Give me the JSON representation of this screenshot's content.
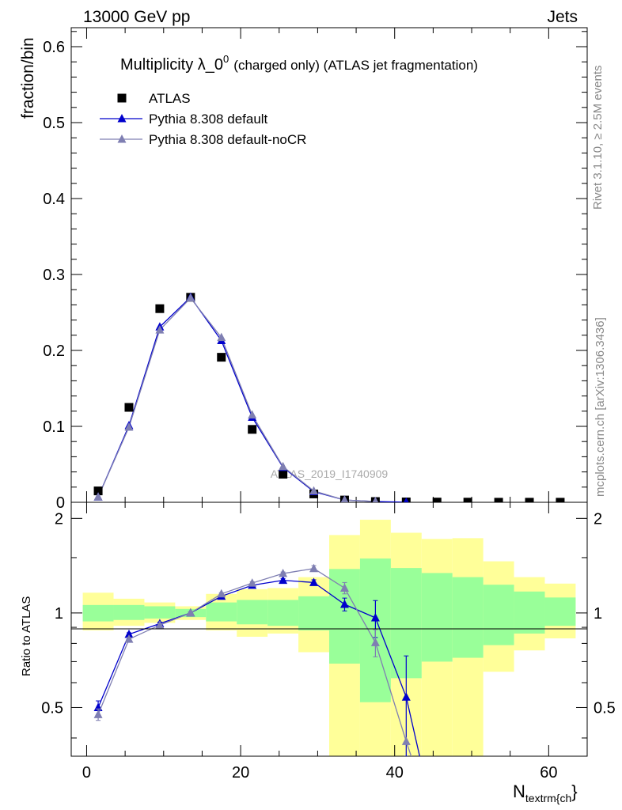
{
  "header": {
    "left": "13000 GeV pp",
    "right": "Jets"
  },
  "side_text": {
    "upper": "Rivet 3.1.10, ≥ 2.5M events",
    "lower": "mcplots.cern.ch [arXiv:1306.3436]"
  },
  "chart_data": {
    "type": "scatter",
    "title": "Multiplicity λ_0",
    "title_sup": "0",
    "title_suffix": "(charged only) (ATLAS jet fragmentation)",
    "watermark": "ATLAS_2019_I1740909",
    "xlabel": "N",
    "xlabel_sub": "textrm{ch",
    "xlabel_tail": "}",
    "ylabel": "fraction/bin",
    "ratio_ylabel": "Ratio to ATLAS",
    "xlim": [
      -2,
      65
    ],
    "ylim": [
      0,
      0.625
    ],
    "ratio_ylim": [
      0.35,
      2.25
    ],
    "x_ticks": [
      "0",
      "20",
      "40",
      "60"
    ],
    "y_ticks": [
      "0",
      "0.1",
      "0.2",
      "0.3",
      "0.4",
      "0.5",
      "0.6"
    ],
    "ratio_ticks": [
      "0.5",
      "1",
      "2"
    ],
    "x": [
      1.5,
      5.5,
      9.5,
      13.5,
      17.5,
      21.5,
      25.5,
      29.5,
      33.5,
      37.5,
      41.5,
      45.5,
      49.5,
      53.5,
      57.5,
      61.5
    ],
    "bin_edges": [
      -0.5,
      3.5,
      7.5,
      11.5,
      15.5,
      19.5,
      23.5,
      27.5,
      31.5,
      35.5,
      39.5,
      43.5,
      47.5,
      51.5,
      55.5,
      59.5,
      63.5
    ],
    "legend": {
      "placement": "top-left",
      "entries": [
        "ATLAS",
        "Pythia 8.308 default",
        "Pythia 8.308 default-noCR"
      ]
    },
    "series": [
      {
        "name": "ATLAS",
        "color": "#000000",
        "marker": "square",
        "values": [
          0.015,
          0.125,
          0.255,
          0.27,
          0.191,
          0.096,
          0.037,
          0.011,
          0.003,
          0.001,
          0.0005,
          0.0003,
          0.0002,
          0.0001,
          0.0001,
          0.0001
        ]
      },
      {
        "name": "Pythia 8.308 default",
        "color": "#0000cc",
        "marker": "triangle",
        "values": [
          0.007,
          0.101,
          0.231,
          0.27,
          0.213,
          0.112,
          0.046,
          0.014,
          0.003,
          0.001,
          0.0002
        ],
        "ratio": [
          0.5,
          0.855,
          0.925,
          1.0,
          1.13,
          1.225,
          1.27,
          1.25,
          1.065,
          0.965,
          0.54,
          0.2
        ],
        "ratio_err": [
          0.025,
          0.01,
          0.01,
          0.008,
          0.01,
          0.012,
          0.015,
          0.025,
          0.05,
          0.13,
          0.19,
          0.0
        ]
      },
      {
        "name": "Pythia 8.308 default-noCR",
        "color": "#7f7fb2",
        "marker": "triangle",
        "values": [
          0.007,
          0.099,
          0.227,
          0.269,
          0.217,
          0.115,
          0.047,
          0.015,
          0.003,
          0.001
        ],
        "ratio": [
          0.475,
          0.825,
          0.915,
          1.0,
          1.15,
          1.245,
          1.335,
          1.385,
          1.2,
          0.805,
          0.39,
          0.2
        ],
        "ratio_err": [
          0.02,
          0.01,
          0.01,
          0.008,
          0.01,
          0.012,
          0.015,
          0.03,
          0.05,
          0.08,
          0.0,
          0.0
        ]
      }
    ],
    "bands": {
      "inner_color": "#99ff99",
      "outer_color": "#ffff99",
      "inner": [
        [
          0.94,
          1.06
        ],
        [
          0.95,
          1.06
        ],
        [
          0.96,
          1.05
        ],
        [
          0.97,
          1.03
        ],
        [
          0.94,
          1.08
        ],
        [
          0.92,
          1.1
        ],
        [
          0.91,
          1.1
        ],
        [
          0.88,
          1.13
        ],
        [
          0.69,
          1.38
        ],
        [
          0.52,
          1.49
        ],
        [
          0.62,
          1.39
        ],
        [
          0.7,
          1.34
        ],
        [
          0.72,
          1.3
        ],
        [
          0.79,
          1.23
        ],
        [
          0.86,
          1.17
        ],
        [
          0.91,
          1.12
        ]
      ],
      "outer": [
        [
          0.88,
          1.16
        ],
        [
          0.91,
          1.11
        ],
        [
          0.93,
          1.08
        ],
        [
          0.95,
          1.05
        ],
        [
          0.88,
          1.15
        ],
        [
          0.84,
          1.19
        ],
        [
          0.86,
          1.2
        ],
        [
          0.75,
          1.3
        ],
        [
          0.35,
          1.77
        ],
        [
          0.35,
          1.98
        ],
        [
          0.35,
          1.8
        ],
        [
          0.35,
          1.72
        ],
        [
          0.35,
          1.73
        ],
        [
          0.65,
          1.46
        ],
        [
          0.76,
          1.3
        ],
        [
          0.83,
          1.24
        ]
      ]
    }
  }
}
